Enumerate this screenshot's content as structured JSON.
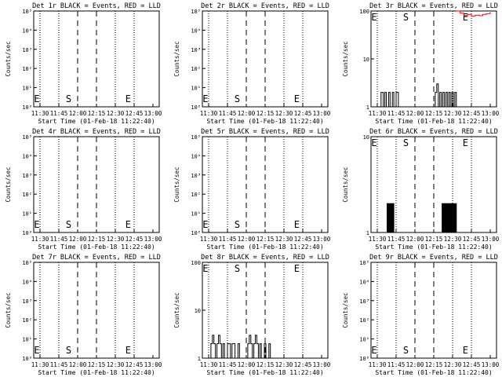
{
  "panel_common": {
    "start_time_label": "Start Time (01-Feb-18 11:22:40)",
    "ylabel": "Counts/sec",
    "x_ticks": [
      "11:30",
      "11:45",
      "12:00",
      "12:15",
      "12:30",
      "12:45",
      "13:00"
    ],
    "markers": {
      "s_label": "S",
      "e_label": "E"
    }
  },
  "chart_data": [
    {
      "type": "line",
      "title": "Det 1r BLACK = Events, RED = LLD",
      "ylabel": "Counts/sec",
      "yscale": "log",
      "y_ticks": [
        "10⁰",
        "10¹",
        "10²",
        "10³",
        "10⁴",
        "10⁵"
      ],
      "series": []
    },
    {
      "type": "line",
      "title": "Det 2r BLACK = Events, RED = LLD",
      "ylabel": "Counts/sec",
      "yscale": "log",
      "y_ticks": [
        "10⁰",
        "10¹",
        "10²",
        "10³",
        "10⁴",
        "10⁵"
      ],
      "series": []
    },
    {
      "type": "line",
      "title": "Det 3r BLACK = Events, RED = LLD",
      "ylabel": "Counts/sec",
      "yscale": "log",
      "y_ticks": [
        "1",
        "10",
        "100"
      ],
      "series": [
        {
          "color": "#000000",
          "values": [
            [
              11.5,
              1
            ],
            [
              11.55,
              2
            ],
            [
              11.58,
              1
            ],
            [
              11.6,
              2
            ],
            [
              11.62,
              1
            ],
            [
              11.65,
              2
            ],
            [
              11.67,
              1
            ],
            [
              11.7,
              2
            ],
            [
              11.72,
              1
            ],
            [
              11.75,
              2
            ],
            [
              11.78,
              1
            ],
            [
              12.25,
              1
            ],
            [
              12.27,
              2
            ],
            [
              12.29,
              3
            ],
            [
              12.31,
              1
            ],
            [
              12.33,
              2
            ],
            [
              12.35,
              1
            ],
            [
              12.37,
              2
            ],
            [
              12.39,
              1
            ],
            [
              12.41,
              2
            ],
            [
              12.43,
              1
            ],
            [
              12.45,
              2
            ],
            [
              12.47,
              1
            ],
            [
              12.49,
              2
            ],
            [
              12.51,
              1
            ],
            [
              12.53,
              2
            ],
            [
              12.55,
              1
            ]
          ]
        },
        {
          "color": "#ff0000",
          "values": [
            [
              12.55,
              100
            ],
            [
              12.6,
              90
            ],
            [
              12.65,
              80
            ],
            [
              12.7,
              85
            ],
            [
              12.75,
              78
            ],
            [
              12.8,
              82
            ],
            [
              12.85,
              80
            ],
            [
              12.9,
              85
            ],
            [
              12.95,
              88
            ],
            [
              13.0,
              95
            ]
          ]
        }
      ]
    },
    {
      "type": "line",
      "title": "Det 4r BLACK = Events, RED = LLD",
      "ylabel": "Counts/sec",
      "yscale": "log",
      "y_ticks": [
        "10⁰",
        "10¹",
        "10²",
        "10³",
        "10⁴",
        "10⁵"
      ],
      "series": []
    },
    {
      "type": "line",
      "title": "Det 5r BLACK = Events, RED = LLD",
      "ylabel": "Counts/sec",
      "yscale": "log",
      "y_ticks": [
        "10⁰",
        "10¹",
        "10²",
        "10³",
        "10⁴",
        "10⁵"
      ],
      "series": []
    },
    {
      "type": "line",
      "title": "Det 6r BLACK = Events, RED = LLD",
      "ylabel": "Counts/sec",
      "yscale": "log",
      "y_ticks": [
        "1",
        "10"
      ],
      "series": [
        {
          "color": "#000000",
          "values": [
            [
              11.62,
              1
            ],
            [
              11.63,
              2
            ],
            [
              11.64,
              1
            ],
            [
              11.65,
              2
            ],
            [
              11.66,
              1
            ],
            [
              11.67,
              2
            ],
            [
              11.68,
              1
            ],
            [
              11.69,
              2
            ],
            [
              11.7,
              1
            ],
            [
              11.71,
              2
            ],
            [
              11.72,
              1
            ],
            [
              12.35,
              1
            ],
            [
              12.36,
              2
            ],
            [
              12.37,
              1
            ],
            [
              12.38,
              2
            ],
            [
              12.39,
              1
            ],
            [
              12.4,
              2
            ],
            [
              12.41,
              1
            ],
            [
              12.42,
              2
            ],
            [
              12.43,
              1
            ],
            [
              12.44,
              2
            ],
            [
              12.45,
              1
            ],
            [
              12.46,
              2
            ],
            [
              12.47,
              1
            ],
            [
              12.48,
              2
            ],
            [
              12.49,
              1
            ],
            [
              12.5,
              2
            ],
            [
              12.51,
              1
            ],
            [
              12.52,
              2
            ],
            [
              12.53,
              1
            ],
            [
              12.54,
              2
            ],
            [
              12.55,
              1
            ]
          ]
        }
      ]
    },
    {
      "type": "line",
      "title": "Det 7r BLACK = Events, RED = LLD",
      "ylabel": "Counts/sec",
      "yscale": "log",
      "y_ticks": [
        "10⁰",
        "10¹",
        "10²",
        "10³",
        "10⁴",
        "10⁵"
      ],
      "series": []
    },
    {
      "type": "line",
      "title": "Det 8r BLACK = Events, RED = LLD",
      "ylabel": "Counts/sec",
      "yscale": "log",
      "y_ticks": [
        "1",
        "10",
        "100"
      ],
      "series": [
        {
          "color": "#000000",
          "values": [
            [
              11.5,
              1
            ],
            [
              11.53,
              2
            ],
            [
              11.55,
              3
            ],
            [
              11.57,
              2
            ],
            [
              11.59,
              1
            ],
            [
              11.61,
              2
            ],
            [
              11.63,
              3
            ],
            [
              11.65,
              2
            ],
            [
              11.67,
              1
            ],
            [
              11.69,
              2
            ],
            [
              11.71,
              1
            ],
            [
              11.73,
              1
            ],
            [
              11.75,
              2
            ],
            [
              11.77,
              2
            ],
            [
              11.79,
              1
            ],
            [
              11.81,
              2
            ],
            [
              11.83,
              2
            ],
            [
              11.85,
              1
            ],
            [
              11.87,
              1
            ],
            [
              11.89,
              2
            ],
            [
              11.91,
              1
            ],
            [
              12.0,
              1
            ],
            [
              12.02,
              2
            ],
            [
              12.04,
              3
            ],
            [
              12.06,
              2
            ],
            [
              12.08,
              1
            ],
            [
              12.1,
              2
            ],
            [
              12.12,
              3
            ],
            [
              12.14,
              2
            ],
            [
              12.16,
              1
            ],
            [
              12.18,
              2
            ],
            [
              12.2,
              1
            ],
            [
              12.22,
              1
            ],
            [
              12.24,
              2
            ],
            [
              12.26,
              1
            ],
            [
              12.28,
              1
            ],
            [
              12.3,
              2
            ],
            [
              12.32,
              1
            ]
          ]
        }
      ]
    },
    {
      "type": "line",
      "title": "Det 9r BLACK = Events, RED = LLD",
      "ylabel": "Counts/sec",
      "yscale": "log",
      "y_ticks": [
        "10⁰",
        "10¹",
        "10²",
        "10³",
        "10⁴",
        "10⁵"
      ],
      "series": []
    }
  ]
}
